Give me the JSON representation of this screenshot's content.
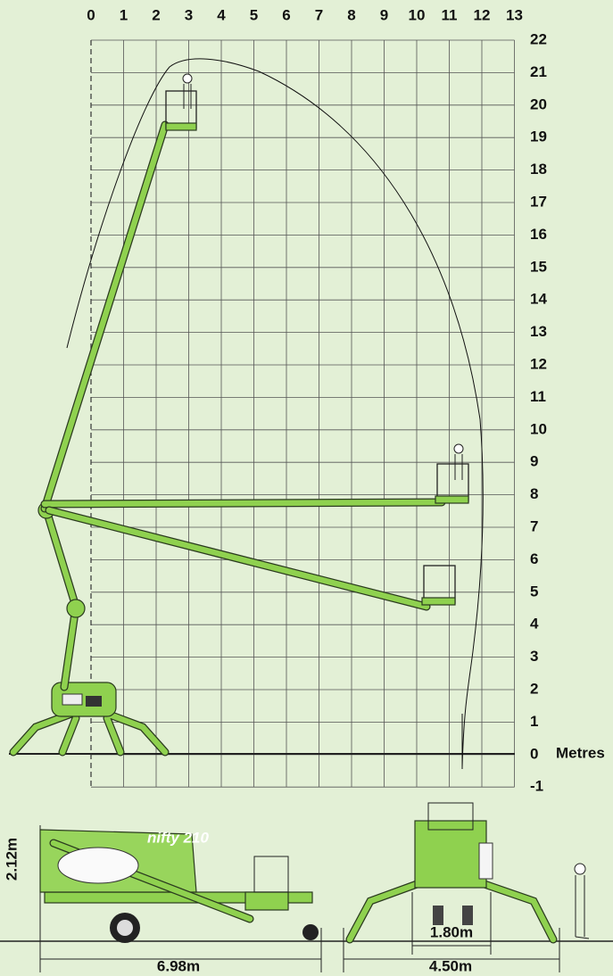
{
  "x_axis_labels": [
    0,
    1,
    2,
    3,
    4,
    5,
    6,
    7,
    8,
    9,
    10,
    11,
    12,
    13
  ],
  "y_axis_labels": [
    22,
    21,
    20,
    19,
    18,
    17,
    16,
    15,
    14,
    13,
    12,
    11,
    10,
    9,
    8,
    7,
    6,
    5,
    4,
    3,
    2,
    1,
    0,
    -1
  ],
  "unit_label": "Metres",
  "brand": "nifty 210",
  "dimensions": {
    "stowed_height": "2.12m",
    "length": "6.98m",
    "track_width": "1.80m",
    "outrigger_width": "4.50m"
  }
}
